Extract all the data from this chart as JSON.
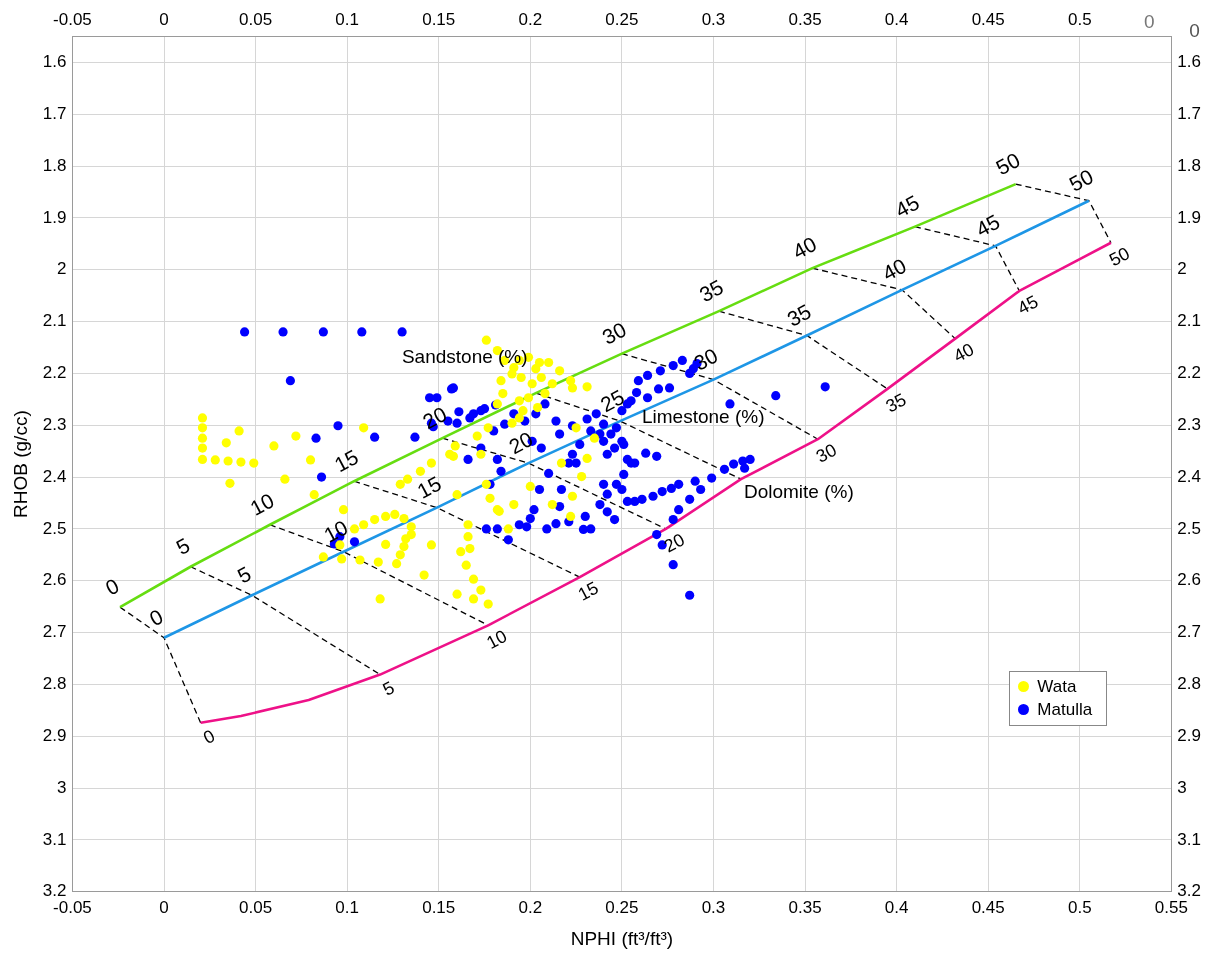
{
  "chart_data": {
    "type": "scatter",
    "xlabel": "NPHI (ft³/ft³)",
    "ylabel": "RHOB (g/cc)",
    "xlim": [
      -0.05,
      0.55
    ],
    "xticks": [
      -0.05,
      0,
      0.05,
      0.1,
      0.15,
      0.2,
      0.25,
      0.3,
      0.35,
      0.4,
      0.45,
      0.5,
      0.55
    ],
    "x2lim": [
      -0.05,
      0.55
    ],
    "x2ticks": [
      -0.05,
      0,
      0.05,
      0.1,
      0.15,
      0.2,
      0.25,
      0.3,
      0.35,
      0.4,
      0.45,
      0.5
    ],
    "ylim": [
      3.2,
      1.55
    ],
    "yticks": [
      1.6,
      1.7,
      1.8,
      1.9,
      2,
      2.1,
      2.2,
      2.3,
      2.4,
      2.5,
      2.6,
      2.7,
      2.8,
      2.9,
      3,
      3.1,
      3.2
    ],
    "y2lim": [
      3.2,
      1.55
    ],
    "y2ticks": [
      1.6,
      1.7,
      1.8,
      1.9,
      2,
      2.1,
      2.2,
      2.3,
      2.4,
      2.5,
      2.6,
      2.7,
      2.8,
      2.9,
      3,
      3.1,
      3.2
    ],
    "grid": true,
    "legend": "bottom right",
    "series": [
      {
        "type": "scatter",
        "name": "Wata",
        "color": "#ffff00",
        "marker": "circle",
        "x": [
          0.021,
          0.021,
          0.021,
          0.021,
          0.021,
          0.028,
          0.035,
          0.042,
          0.049,
          0.034,
          0.041,
          0.036,
          0.06,
          0.072,
          0.08,
          0.066,
          0.109,
          0.082,
          0.098,
          0.129,
          0.133,
          0.14,
          0.146,
          0.156,
          0.159,
          0.104,
          0.109,
          0.115,
          0.121,
          0.126,
          0.131,
          0.135,
          0.135,
          0.132,
          0.131,
          0.129,
          0.127,
          0.121,
          0.117,
          0.087,
          0.096,
          0.097,
          0.107,
          0.118,
          0.142,
          0.146,
          0.162,
          0.166,
          0.165,
          0.169,
          0.173,
          0.177,
          0.16,
          0.169,
          0.166,
          0.16,
          0.178,
          0.191,
          0.183,
          0.176,
          0.176,
          0.182,
          0.186,
          0.19,
          0.184,
          0.194,
          0.199,
          0.205,
          0.21,
          0.216,
          0.222,
          0.223,
          0.231,
          0.195,
          0.201,
          0.206,
          0.212,
          0.199,
          0.194,
          0.208,
          0.196,
          0.194,
          0.19,
          0.185,
          0.204,
          0.203,
          0.191,
          0.225,
          0.235,
          0.217,
          0.231,
          0.228,
          0.2,
          0.223,
          0.212,
          0.222,
          0.182,
          0.188,
          0.167,
          0.173,
          0.158,
          0.171,
          0.177,
          0.182
        ],
        "values": [
          2.286,
          2.305,
          2.325,
          2.344,
          2.366,
          2.367,
          2.369,
          2.371,
          2.373,
          2.334,
          2.311,
          2.412,
          2.34,
          2.321,
          2.367,
          2.404,
          2.305,
          2.434,
          2.463,
          2.414,
          2.404,
          2.389,
          2.373,
          2.356,
          2.34,
          2.5,
          2.492,
          2.482,
          2.476,
          2.472,
          2.48,
          2.496,
          2.511,
          2.519,
          2.534,
          2.55,
          2.567,
          2.53,
          2.564,
          2.554,
          2.531,
          2.558,
          2.56,
          2.635,
          2.589,
          2.531,
          2.544,
          2.515,
          2.57,
          2.597,
          2.618,
          2.645,
          2.626,
          2.635,
          2.492,
          2.434,
          2.441,
          2.453,
          2.466,
          2.414,
          2.136,
          2.156,
          2.175,
          2.201,
          2.214,
          2.175,
          2.169,
          2.179,
          2.179,
          2.195,
          2.214,
          2.228,
          2.226,
          2.208,
          2.22,
          2.208,
          2.22,
          2.247,
          2.253,
          2.239,
          2.272,
          2.286,
          2.296,
          2.239,
          2.266,
          2.191,
          2.189,
          2.305,
          2.325,
          2.373,
          2.364,
          2.399,
          2.418,
          2.437,
          2.453,
          2.476,
          2.463,
          2.5,
          2.538,
          2.356,
          2.36,
          2.321,
          2.305,
          2.259
        ]
      },
      {
        "type": "scatter",
        "name": "Matulla",
        "color": "#0000ff",
        "marker": "circle",
        "x": [
          0.044,
          0.065,
          0.087,
          0.108,
          0.13,
          0.069,
          0.095,
          0.083,
          0.086,
          0.115,
          0.093,
          0.096,
          0.104,
          0.137,
          0.147,
          0.155,
          0.161,
          0.169,
          0.175,
          0.181,
          0.157,
          0.149,
          0.146,
          0.16,
          0.167,
          0.173,
          0.18,
          0.186,
          0.191,
          0.197,
          0.203,
          0.208,
          0.214,
          0.201,
          0.206,
          0.216,
          0.223,
          0.231,
          0.236,
          0.24,
          0.244,
          0.25,
          0.253,
          0.24,
          0.246,
          0.251,
          0.242,
          0.253,
          0.257,
          0.263,
          0.269,
          0.259,
          0.264,
          0.271,
          0.278,
          0.283,
          0.287,
          0.289,
          0.291,
          0.276,
          0.27,
          0.264,
          0.258,
          0.255,
          0.309,
          0.334,
          0.361,
          0.166,
          0.173,
          0.182,
          0.184,
          0.178,
          0.176,
          0.182,
          0.188,
          0.194,
          0.198,
          0.2,
          0.202,
          0.205,
          0.209,
          0.214,
          0.216,
          0.217,
          0.21,
          0.221,
          0.225,
          0.221,
          0.229,
          0.233,
          0.23,
          0.238,
          0.242,
          0.246,
          0.24,
          0.242,
          0.247,
          0.25,
          0.251,
          0.255,
          0.253,
          0.257,
          0.261,
          0.267,
          0.272,
          0.277,
          0.281,
          0.287,
          0.293,
          0.29,
          0.299,
          0.306,
          0.311,
          0.316,
          0.32,
          0.317,
          0.281,
          0.278,
          0.269,
          0.272,
          0.278,
          0.287,
          0.233,
          0.238,
          0.247,
          0.25,
          0.227,
          0.223,
          0.145,
          0.158
        ],
        "values": [
          2.12,
          2.12,
          2.12,
          2.12,
          2.12,
          2.214,
          2.301,
          2.325,
          2.4,
          2.323,
          2.529,
          2.515,
          2.525,
          2.323,
          2.303,
          2.292,
          2.274,
          2.278,
          2.268,
          2.261,
          2.23,
          2.247,
          2.296,
          2.296,
          2.286,
          2.272,
          2.311,
          2.298,
          2.278,
          2.292,
          2.278,
          2.259,
          2.292,
          2.331,
          2.344,
          2.317,
          2.301,
          2.288,
          2.278,
          2.298,
          2.317,
          2.272,
          2.259,
          2.331,
          2.344,
          2.337,
          2.356,
          2.366,
          2.373,
          2.354,
          2.36,
          2.214,
          2.204,
          2.195,
          2.185,
          2.175,
          2.2,
          2.191,
          2.181,
          2.228,
          2.23,
          2.247,
          2.237,
          2.253,
          2.259,
          2.243,
          2.226,
          2.366,
          2.344,
          2.366,
          2.389,
          2.414,
          2.5,
          2.5,
          2.521,
          2.492,
          2.496,
          2.48,
          2.463,
          2.424,
          2.5,
          2.49,
          2.457,
          2.424,
          2.393,
          2.373,
          2.373,
          2.486,
          2.501,
          2.5,
          2.476,
          2.453,
          2.467,
          2.482,
          2.414,
          2.433,
          2.414,
          2.424,
          2.395,
          2.373,
          2.447,
          2.447,
          2.443,
          2.437,
          2.428,
          2.422,
          2.414,
          2.443,
          2.424,
          2.408,
          2.402,
          2.385,
          2.375,
          2.369,
          2.366,
          2.383,
          2.463,
          2.482,
          2.511,
          2.531,
          2.569,
          2.628,
          2.311,
          2.317,
          2.305,
          2.331,
          2.337,
          2.356,
          2.247,
          2.228
        ]
      },
      {
        "type": "line",
        "color": "#66dd11",
        "marker": "none",
        "line_style": "solid",
        "x": [
          -0.024,
          0.0145,
          0.0578,
          0.1038,
          0.152,
          0.203,
          0.25,
          0.303,
          0.354,
          0.41,
          0.465
        ],
        "values": [
          2.651,
          2.573,
          2.492,
          2.408,
          2.325,
          2.238,
          2.162,
          2.08,
          1.997,
          1.917,
          1.835
        ]
      },
      {
        "type": "line",
        "color": "#1e96e6",
        "marker": "none",
        "line_style": "solid",
        "x": [
          0,
          0.048,
          0.098,
          0.149,
          0.199,
          0.249,
          0.3,
          0.351,
          0.403,
          0.454,
          0.505
        ],
        "values": [
          2.71,
          2.628,
          2.544,
          2.459,
          2.373,
          2.292,
          2.212,
          2.127,
          2.039,
          1.954,
          1.867
        ]
      },
      {
        "type": "line",
        "color": "#ee1188",
        "marker": "none",
        "line_style": "solid",
        "x": [
          0.02,
          0.042,
          0.079,
          0.118,
          0.177,
          0.227,
          0.274,
          0.315,
          0.357,
          0.395,
          0.432,
          0.467,
          0.517
        ],
        "values": [
          2.874,
          2.861,
          2.83,
          2.781,
          2.686,
          2.593,
          2.5,
          2.404,
          2.327,
          2.23,
          2.133,
          2.041,
          1.948
        ]
      },
      {
        "type": "line",
        "color": "#000000",
        "marker": "none",
        "line_style": "dashed",
        "x": [
          -0.024,
          0,
          0.02
        ],
        "values": [
          2.651,
          2.71,
          2.874
        ]
      },
      {
        "type": "line",
        "color": "#000000",
        "marker": "none",
        "line_style": "dashed",
        "x": [
          0.0145,
          0.048,
          0.118
        ],
        "values": [
          2.573,
          2.628,
          2.781
        ]
      },
      {
        "type": "line",
        "color": "#000000",
        "marker": "none",
        "line_style": "dashed",
        "x": [
          0.0578,
          0.098,
          0.177
        ],
        "values": [
          2.492,
          2.544,
          2.686
        ]
      },
      {
        "type": "line",
        "color": "#000000",
        "marker": "none",
        "line_style": "dashed",
        "x": [
          0.1038,
          0.149,
          0.227
        ],
        "values": [
          2.408,
          2.459,
          2.593
        ]
      },
      {
        "type": "line",
        "color": "#000000",
        "marker": "none",
        "line_style": "dashed",
        "x": [
          0.152,
          0.199,
          0.274
        ],
        "values": [
          2.325,
          2.373,
          2.5
        ]
      },
      {
        "type": "line",
        "color": "#000000",
        "marker": "none",
        "line_style": "dashed",
        "x": [
          0.203,
          0.249,
          0.315
        ],
        "values": [
          2.238,
          2.292,
          2.404
        ]
      },
      {
        "type": "line",
        "color": "#000000",
        "marker": "none",
        "line_style": "dashed",
        "x": [
          0.25,
          0.3,
          0.357
        ],
        "values": [
          2.162,
          2.212,
          2.327
        ]
      },
      {
        "type": "line",
        "color": "#000000",
        "marker": "none",
        "line_style": "dashed",
        "x": [
          0.303,
          0.351,
          0.395
        ],
        "values": [
          2.08,
          2.127,
          2.23
        ]
      },
      {
        "type": "line",
        "color": "#000000",
        "marker": "none",
        "line_style": "dashed",
        "x": [
          0.354,
          0.403,
          0.432
        ],
        "values": [
          1.997,
          2.039,
          2.133
        ]
      },
      {
        "type": "line",
        "color": "#000000",
        "marker": "none",
        "line_style": "dashed",
        "x": [
          0.41,
          0.454,
          0.467
        ],
        "values": [
          1.917,
          1.954,
          2.041
        ]
      },
      {
        "type": "line",
        "color": "#000000",
        "marker": "none",
        "line_style": "dashed",
        "x": [
          0.465,
          0.505,
          0.517
        ],
        "values": [
          1.835,
          1.867,
          1.948
        ]
      }
    ],
    "annotations": [
      "Sandstone (%)",
      "Limestone (%)",
      "Dolomite (%)",
      "0",
      "0",
      {
        "text": "0",
        "x": -0.024,
        "y": 2.651
      },
      {
        "text": "5",
        "x": 0.0145,
        "y": 2.573
      },
      {
        "text": "10",
        "x": 0.0578,
        "y": 2.492
      },
      {
        "text": "15",
        "x": 0.1038,
        "y": 2.408
      },
      {
        "text": "20",
        "x": 0.152,
        "y": 2.325
      },
      {
        "text": "30",
        "x": 0.25,
        "y": 2.162
      },
      {
        "text": "35",
        "x": 0.303,
        "y": 2.08
      },
      {
        "text": "40",
        "x": 0.354,
        "y": 1.997
      },
      {
        "text": "45",
        "x": 0.41,
        "y": 1.917
      },
      {
        "text": "50",
        "x": 0.465,
        "y": 1.835
      },
      {
        "text": "0",
        "x": 0,
        "y": 2.71
      },
      {
        "text": "5",
        "x": 0.048,
        "y": 2.628
      },
      {
        "text": "10",
        "x": 0.098,
        "y": 2.544
      },
      {
        "text": "15",
        "x": 0.149,
        "y": 2.459
      },
      {
        "text": "20",
        "x": 0.199,
        "y": 2.373
      },
      {
        "text": "25",
        "x": 0.249,
        "y": 2.292
      },
      {
        "text": "30",
        "x": 0.3,
        "y": 2.212
      },
      {
        "text": "35",
        "x": 0.351,
        "y": 2.127
      },
      {
        "text": "40",
        "x": 0.403,
        "y": 2.039
      },
      {
        "text": "45",
        "x": 0.454,
        "y": 1.954
      },
      {
        "text": "50",
        "x": 0.505,
        "y": 1.867
      },
      {
        "text": "0",
        "x": 0.02,
        "y": 2.874
      },
      {
        "text": "5",
        "x": 0.118,
        "y": 2.781
      },
      {
        "text": "10",
        "x": 0.177,
        "y": 2.686
      },
      {
        "text": "15",
        "x": 0.227,
        "y": 2.593
      },
      {
        "text": "20",
        "x": 0.274,
        "y": 2.5
      },
      {
        "text": "30",
        "x": 0.357,
        "y": 2.327
      },
      {
        "text": "35",
        "x": 0.395,
        "y": 2.23
      },
      {
        "text": "40",
        "x": 0.432,
        "y": 2.133
      },
      {
        "text": "45",
        "x": 0.467,
        "y": 2.041
      },
      {
        "text": "50",
        "x": 0.517,
        "y": 1.948
      }
    ]
  }
}
